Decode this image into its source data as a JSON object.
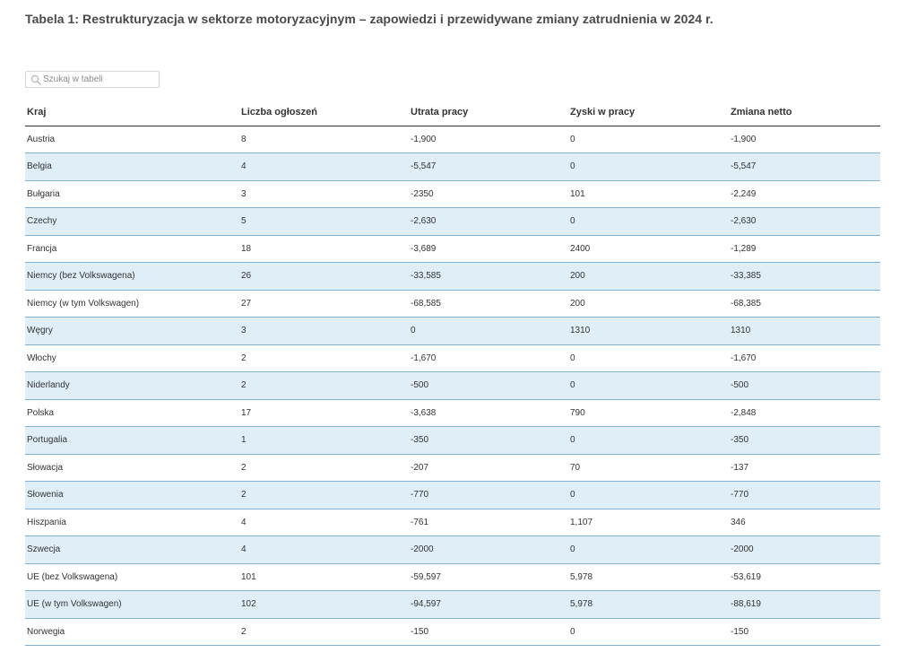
{
  "title": "Tabela 1: Restrukturyzacja w sektorze motoryzacyjnym – zapowiedzi i przewidywane zmiany zatrudnienia w 2024 r.",
  "search": {
    "placeholder": "Szukaj w tabeli",
    "value": ""
  },
  "colors": {
    "alt_row": "#e0eef8",
    "row_border": "#7fb2d6",
    "header_border": "#333333"
  },
  "table": {
    "headers": [
      "Kraj",
      "Liczba ogłoszeń",
      "Utrata pracy",
      "Zyski w pracy",
      "Zmiana netto"
    ],
    "rows": [
      [
        "Austria",
        "8",
        "-1,900",
        "0",
        "-1,900"
      ],
      [
        "Belgia",
        "4",
        "-5,547",
        "0",
        "-5,547"
      ],
      [
        "Bułgaria",
        "3",
        "-2350",
        "101",
        "-2,249"
      ],
      [
        "Czechy",
        "5",
        "-2,630",
        "0",
        "-2,630"
      ],
      [
        "Francja",
        "18",
        "-3,689",
        "2400",
        "-1,289"
      ],
      [
        "Niemcy (bez Volkswagena)",
        "26",
        "-33,585",
        "200",
        "-33,385"
      ],
      [
        "Niemcy (w tym Volkswagen)",
        "27",
        "-68,585",
        "200",
        "-68,385"
      ],
      [
        "Węgry",
        "3",
        "0",
        "1310",
        "1310"
      ],
      [
        "Włochy",
        "2",
        "-1,670",
        "0",
        "-1,670"
      ],
      [
        "Niderlandy",
        "2",
        "-500",
        "0",
        "-500"
      ],
      [
        "Polska",
        "17",
        "-3,638",
        "790",
        "-2,848"
      ],
      [
        "Portugalia",
        "1",
        "-350",
        "0",
        "-350"
      ],
      [
        "Słowacja",
        "2",
        "-207",
        "70",
        "-137"
      ],
      [
        "Słowenia",
        "2",
        "-770",
        "0",
        "-770"
      ],
      [
        "Hiszpania",
        "4",
        "-761",
        "1,107",
        "346"
      ],
      [
        "Szwecja",
        "4",
        "-2000",
        "0",
        "-2000"
      ],
      [
        "UE (bez Volkswagena)",
        "101",
        "-59,597",
        "5,978",
        "-53,619"
      ],
      [
        "UE (w tym Volkswagen)",
        "102",
        "-94,597",
        "5,978",
        "-88,619"
      ],
      [
        "Norwegia",
        "2",
        "-150",
        "0",
        "-150"
      ]
    ]
  }
}
